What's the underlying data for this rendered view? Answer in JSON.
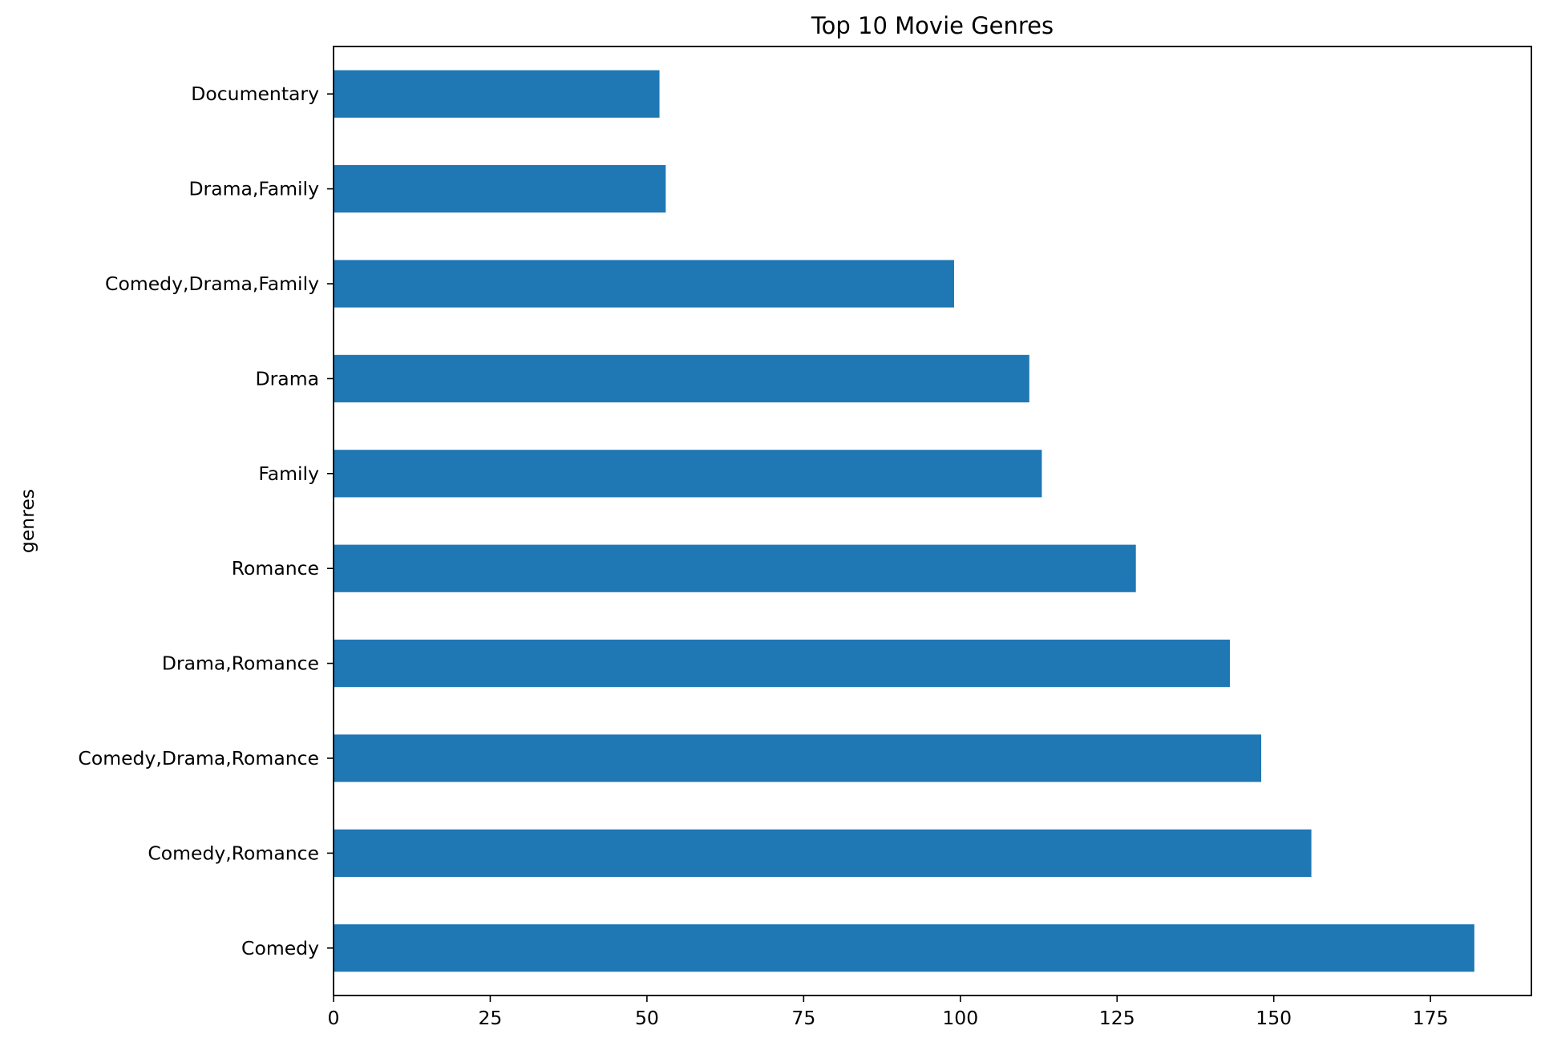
{
  "chart_data": {
    "type": "bar",
    "orientation": "horizontal",
    "title": "Top 10 Movie Genres",
    "xlabel": "",
    "ylabel": "genres",
    "categories": [
      "Comedy",
      "Comedy,Romance",
      "Comedy,Drama,Romance",
      "Drama,Romance",
      "Romance",
      "Family",
      "Drama",
      "Comedy,Drama,Family",
      "Drama,Family",
      "Documentary"
    ],
    "values": [
      182,
      156,
      148,
      143,
      128,
      113,
      111,
      99,
      53,
      52
    ],
    "xlim": [
      0,
      191.1
    ],
    "xticks": [
      0,
      25,
      50,
      75,
      100,
      125,
      150,
      175
    ],
    "grid": false,
    "legend": "none",
    "bar_color": "#1f77b4"
  }
}
